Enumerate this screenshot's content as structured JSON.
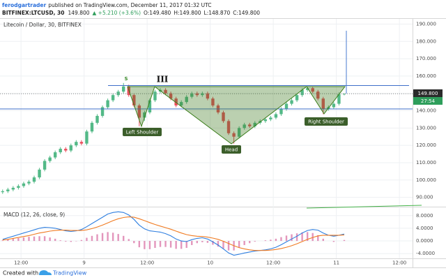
{
  "header": {
    "author": "ferodgartrader",
    "published": "published on TradingView.com, December 11, 2017 01:32 UTC",
    "symbol": "BITFINEX:LTCUSD, 30",
    "price": "149.800",
    "change": "▲ +5.210 (+3.6%)",
    "open": "O:149.480",
    "high": "H:149.800",
    "low": "L:148.870",
    "close": "C:149.800",
    "last_price_label": "149.800",
    "countdown": "27:54"
  },
  "annotations": {
    "s": "S",
    "wave": "III",
    "left_shoulder": "Left Shoulder",
    "head": "Head",
    "right_shoulder": "Right Shoulder"
  },
  "footer": {
    "created_with": "Created with",
    "brand": "TradingView"
  },
  "chart_data": [
    {
      "type": "candlestick",
      "title": "Litecoin / Dollar, 30, BITFINEX",
      "up_color": "#53b987",
      "down_color": "#eb4d5c",
      "grid": true,
      "xlim": [
        8,
        86.5
      ],
      "xticks": [
        {
          "value": 12,
          "label": "12:00"
        },
        {
          "value": 24,
          "label": "9"
        },
        {
          "value": 36,
          "label": "12:00"
        },
        {
          "value": 48,
          "label": "10"
        },
        {
          "value": 60,
          "label": "12:00"
        },
        {
          "value": 72,
          "label": "11"
        },
        {
          "value": 84,
          "label": "12:00"
        }
      ],
      "ylim": [
        85,
        193
      ],
      "yticks": [
        {
          "value": 90,
          "label": "90.000"
        },
        {
          "value": 100,
          "label": "100.000"
        },
        {
          "value": 110,
          "label": "110.000"
        },
        {
          "value": 120,
          "label": "120.000"
        },
        {
          "value": 130,
          "label": "130.000"
        },
        {
          "value": 140,
          "label": "140.000"
        },
        {
          "value": 150,
          "label": "150.000"
        },
        {
          "value": 160,
          "label": "160.000"
        },
        {
          "value": 170,
          "label": "170.000"
        },
        {
          "value": 180,
          "label": "180.000"
        },
        {
          "value": 190,
          "label": "190.000"
        }
      ],
      "x": [
        8.5,
        9.5,
        10.5,
        11.5,
        12.5,
        13.5,
        14.5,
        15.5,
        16.5,
        17.5,
        18.5,
        19.5,
        20.5,
        21.5,
        22.5,
        23.5,
        24.5,
        25.5,
        26.5,
        27.5,
        28.5,
        29.5,
        30.5,
        31.5,
        32.5,
        33.5,
        34.5,
        35.5,
        36.5,
        37.5,
        38.5,
        39.5,
        40.5,
        41.5,
        42.5,
        43.5,
        44.5,
        45.5,
        46.5,
        47.5,
        48.5,
        49.5,
        50.5,
        51.5,
        52.5,
        53.5,
        54.5,
        55.5,
        56.5,
        57.5,
        58.5,
        59.5,
        60.5,
        61.5,
        62.5,
        63.5,
        64.5,
        65.5,
        66.5,
        67.5,
        68.5,
        69.5,
        70.5,
        71.5,
        72.5,
        73.5
      ],
      "open": [
        93,
        93.5,
        94.5,
        95.5,
        96.5,
        98,
        99,
        101.5,
        106,
        111,
        113,
        116,
        118,
        117,
        120,
        122,
        121,
        128,
        133,
        137,
        142,
        146,
        149,
        151,
        154,
        149,
        143,
        136,
        139,
        146,
        151,
        152,
        150,
        147,
        143,
        145,
        148,
        150,
        149,
        150,
        147,
        143,
        139,
        134,
        127,
        125,
        130,
        132,
        131,
        133,
        134,
        135,
        136,
        138,
        141,
        144,
        146,
        149,
        152,
        153,
        151,
        147,
        141,
        142,
        144,
        149.48
      ],
      "high": [
        94.5,
        95.5,
        96.5,
        97.5,
        99,
        100,
        102.5,
        107,
        112,
        114,
        117,
        119,
        119,
        121,
        123,
        123,
        129,
        134,
        138,
        143,
        147,
        150,
        152,
        156,
        155,
        150,
        144,
        140,
        147,
        152,
        153,
        153,
        151,
        148,
        146,
        149,
        151,
        151,
        151,
        151,
        148,
        144,
        140,
        135,
        128,
        131,
        133,
        133,
        134,
        135,
        136,
        137,
        139,
        142,
        145,
        147,
        150,
        153,
        154,
        154,
        152,
        148,
        143,
        145,
        150.5,
        149.8
      ],
      "low": [
        92,
        92.5,
        93.5,
        94.5,
        95.5,
        97,
        98,
        100.5,
        105,
        110,
        112,
        115,
        116,
        116,
        119,
        120,
        120,
        127,
        132,
        136,
        141,
        145,
        148,
        150,
        148,
        142,
        131,
        134,
        138,
        145,
        150,
        149,
        146,
        142,
        142,
        144,
        147,
        148,
        148,
        146,
        142,
        138,
        133,
        126,
        121,
        124,
        129,
        130,
        130,
        132,
        133,
        134,
        135,
        137,
        140,
        143,
        145,
        148,
        151,
        150,
        146,
        138,
        140,
        141,
        143,
        148.87
      ],
      "close": [
        93.5,
        94.5,
        95.5,
        96.5,
        98,
        99,
        101.5,
        106,
        111,
        113,
        116,
        118,
        117,
        120,
        122,
        121,
        128,
        133,
        137,
        142,
        146,
        149,
        151,
        154,
        149,
        143,
        136,
        139,
        146,
        151,
        152,
        150,
        147,
        143,
        145,
        148,
        150,
        149,
        150,
        147,
        143,
        139,
        134,
        127,
        125,
        130,
        132,
        131,
        133,
        134,
        135,
        136,
        138,
        141,
        144,
        146,
        149,
        152,
        153,
        151,
        147,
        141,
        142,
        144,
        149.48,
        149.8
      ]
    },
    {
      "type": "macd",
      "title": "MACD (12, 26, close, 9)",
      "grid": true,
      "ylim": [
        -5.5,
        10.6
      ],
      "yticks": [
        {
          "value": -4,
          "label": "-4.0000"
        },
        {
          "value": 0,
          "label": "0.0000"
        },
        {
          "value": 4,
          "label": "4.0000"
        },
        {
          "value": 8,
          "label": "8.0000"
        }
      ],
      "x": [
        8.5,
        9.5,
        10.5,
        11.5,
        12.5,
        13.5,
        14.5,
        15.5,
        16.5,
        17.5,
        18.5,
        19.5,
        20.5,
        21.5,
        22.5,
        23.5,
        24.5,
        25.5,
        26.5,
        27.5,
        28.5,
        29.5,
        30.5,
        31.5,
        32.5,
        33.5,
        34.5,
        35.5,
        36.5,
        37.5,
        38.5,
        39.5,
        40.5,
        41.5,
        42.5,
        43.5,
        44.5,
        45.5,
        46.5,
        47.5,
        48.5,
        49.5,
        50.5,
        51.5,
        52.5,
        53.5,
        54.5,
        55.5,
        56.5,
        57.5,
        58.5,
        59.5,
        60.5,
        61.5,
        62.5,
        63.5,
        64.5,
        65.5,
        66.5,
        67.5,
        68.5,
        69.5,
        70.5,
        71.5,
        72.5,
        73.5
      ],
      "series": [
        {
          "kind": "bar",
          "color": "#d0508f",
          "values": [
            0.2,
            0.5,
            0.7,
            0.9,
            1.1,
            1.3,
            1.4,
            1.5,
            1.5,
            1.1,
            0.7,
            0.2,
            -0.2,
            -0.3,
            -0.1,
            0.3,
            1,
            1.6,
            2.1,
            2.5,
            2.8,
            2.6,
            2.2,
            1.6,
            0.6,
            -0.7,
            -2,
            -2.6,
            -2.6,
            -2.2,
            -1.9,
            -1.9,
            -2.1,
            -2.5,
            -2.5,
            -2.2,
            -1.3,
            -0.7,
            -0.4,
            -0.6,
            -1.2,
            -1.8,
            -2.4,
            -3,
            -3,
            -2.1,
            -1.3,
            -0.7,
            -0.2,
            0,
            0.2,
            0.4,
            0.7,
            1.2,
            1.7,
            2.1,
            2.4,
            2.7,
            2.8,
            2.5,
            1.8,
            0.7,
            0,
            -0.3,
            0,
            0.3
          ]
        },
        {
          "kind": "line",
          "color": "#2f7fe0",
          "values": [
            0.5,
            1,
            1.5,
            2,
            2.5,
            3,
            3.5,
            4,
            4.3,
            4.2,
            4,
            3.6,
            3.2,
            3,
            3.2,
            3.6,
            4.5,
            5.5,
            6.5,
            7.5,
            8.5,
            9,
            9.2,
            9,
            8.2,
            6.8,
            5,
            3.8,
            3.2,
            3,
            2.8,
            2.3,
            1.6,
            0.6,
            0,
            -0.2,
            0.4,
            0.8,
            1,
            0.6,
            -0.3,
            -1.3,
            -2.5,
            -3.8,
            -4.5,
            -4.2,
            -3.8,
            -3.5,
            -3.2,
            -3,
            -2.8,
            -2.5,
            -2,
            -1.2,
            -0.3,
            0.6,
            1.5,
            2.5,
            3.3,
            3.6,
            3.4,
            2.5,
            1.8,
            1.5,
            1.8,
            2.2
          ]
        },
        {
          "kind": "line",
          "color": "#f07b22",
          "values": [
            0.3,
            0.5,
            0.8,
            1.1,
            1.4,
            1.7,
            2.1,
            2.5,
            2.8,
            3.1,
            3.3,
            3.4,
            3.4,
            3.3,
            3.3,
            3.3,
            3.5,
            3.9,
            4.4,
            5,
            5.7,
            6.4,
            7,
            7.4,
            7.6,
            7.5,
            7,
            6.4,
            5.8,
            5.2,
            4.7,
            4.2,
            3.7,
            3.1,
            2.5,
            2,
            1.7,
            1.5,
            1.4,
            1.2,
            0.9,
            0.5,
            -0.1,
            -0.8,
            -1.5,
            -2.1,
            -2.5,
            -2.8,
            -3,
            -3,
            -3,
            -2.9,
            -2.7,
            -2.4,
            -2,
            -1.5,
            -0.9,
            -0.2,
            0.5,
            1.1,
            1.6,
            1.8,
            1.8,
            1.8,
            1.8,
            1.9
          ]
        }
      ]
    }
  ]
}
